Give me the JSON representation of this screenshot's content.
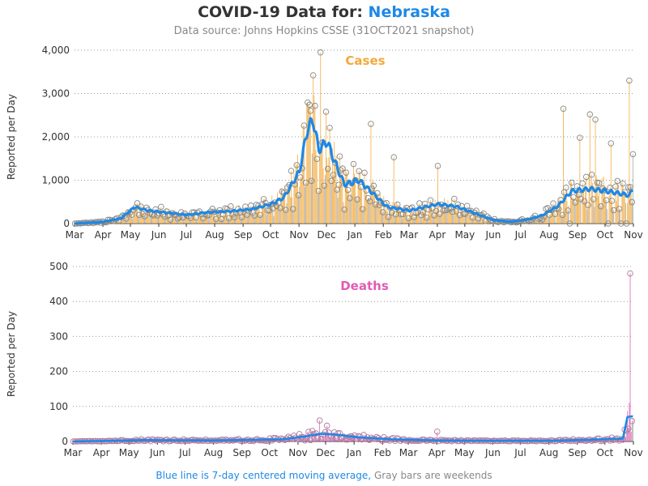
{
  "title": {
    "prefix": "COVID-19 Data for:",
    "state": "Nebraska"
  },
  "subtitle": "Data source: Johns Hopkins CSSE (31OCT2021 snapshot)",
  "footnote": {
    "blue_part": "Blue line is 7-day centered moving average,",
    "gray_part": "Gray bars are weekends"
  },
  "colors": {
    "cases": "#f2a93b",
    "deaths": "#e05cb5",
    "avg": "#1e88e5",
    "weekend": "#999999",
    "marker": "#888888"
  },
  "chart_data": [
    {
      "type": "bar",
      "panel": "Cases",
      "ylabel": "Reported per Day",
      "ylim": [
        0,
        4000
      ],
      "yticks": [
        "0",
        "1,000",
        "2,000",
        "3,000",
        "4,000"
      ],
      "xticks": [
        "Mar",
        "Apr",
        "May",
        "Jun",
        "Jul",
        "Aug",
        "Sep",
        "Oct",
        "Nov",
        "Dec",
        "Jan",
        "Feb",
        "Mar",
        "Apr",
        "May",
        "Jun",
        "Jul",
        "Aug",
        "Sep",
        "Oct",
        "Nov"
      ],
      "x_start": "2020-03-01",
      "x_end": "2021-10-31",
      "moving_average_keypoints": [
        [
          "2020-03-01",
          0
        ],
        [
          "2020-04-01",
          40
        ],
        [
          "2020-04-20",
          120
        ],
        [
          "2020-05-05",
          380
        ],
        [
          "2020-05-20",
          300
        ],
        [
          "2020-06-10",
          250
        ],
        [
          "2020-07-01",
          200
        ],
        [
          "2020-07-25",
          260
        ],
        [
          "2020-08-15",
          280
        ],
        [
          "2020-09-10",
          330
        ],
        [
          "2020-10-01",
          450
        ],
        [
          "2020-10-15",
          600
        ],
        [
          "2020-11-01",
          1200
        ],
        [
          "2020-11-10",
          2200
        ],
        [
          "2020-11-16",
          2380
        ],
        [
          "2020-11-22",
          1700
        ],
        [
          "2020-12-01",
          1900
        ],
        [
          "2020-12-10",
          1400
        ],
        [
          "2020-12-20",
          900
        ],
        [
          "2021-01-05",
          1000
        ],
        [
          "2021-01-20",
          700
        ],
        [
          "2021-02-05",
          380
        ],
        [
          "2021-03-01",
          300
        ],
        [
          "2021-04-01",
          450
        ],
        [
          "2021-04-20",
          400
        ],
        [
          "2021-05-10",
          250
        ],
        [
          "2021-06-01",
          80
        ],
        [
          "2021-06-20",
          40
        ],
        [
          "2021-07-10",
          100
        ],
        [
          "2021-07-25",
          200
        ],
        [
          "2021-08-10",
          400
        ],
        [
          "2021-08-25",
          750
        ],
        [
          "2021-09-15",
          800
        ],
        [
          "2021-10-01",
          750
        ],
        [
          "2021-10-15",
          700
        ],
        [
          "2021-10-27",
          650
        ],
        [
          "2021-10-31",
          800
        ]
      ],
      "notable_daily_values": [
        [
          "2020-11-13",
          2600
        ],
        [
          "2020-11-16",
          3420
        ],
        [
          "2020-11-24",
          3950
        ],
        [
          "2020-12-15",
          1550
        ],
        [
          "2021-01-18",
          2300
        ],
        [
          "2021-02-12",
          1530
        ],
        [
          "2021-04-01",
          1330
        ],
        [
          "2021-08-16",
          2650
        ],
        [
          "2021-09-03",
          1980
        ],
        [
          "2021-09-14",
          2520
        ],
        [
          "2021-09-20",
          2400
        ],
        [
          "2021-10-07",
          1850
        ],
        [
          "2021-10-27",
          3300
        ],
        [
          "2021-10-31",
          1600
        ]
      ]
    },
    {
      "type": "bar",
      "panel": "Deaths",
      "ylabel": "Reported per Day",
      "ylim": [
        0,
        500
      ],
      "yticks": [
        "0",
        "100",
        "200",
        "300",
        "400",
        "500"
      ],
      "xticks": [
        "Mar",
        "Apr",
        "May",
        "Jun",
        "Jul",
        "Aug",
        "Sep",
        "Oct",
        "Nov",
        "Dec",
        "Jan",
        "Feb",
        "Mar",
        "Apr",
        "May",
        "Jun",
        "Jul",
        "Aug",
        "Sep",
        "Oct",
        "Nov"
      ],
      "x_start": "2020-03-01",
      "x_end": "2021-10-31",
      "moving_average_keypoints": [
        [
          "2020-03-01",
          0
        ],
        [
          "2020-04-15",
          2
        ],
        [
          "2020-05-15",
          4
        ],
        [
          "2020-08-01",
          3
        ],
        [
          "2020-10-15",
          6
        ],
        [
          "2020-11-10",
          15
        ],
        [
          "2020-11-25",
          22
        ],
        [
          "2020-12-10",
          20
        ],
        [
          "2021-01-05",
          12
        ],
        [
          "2021-02-10",
          6
        ],
        [
          "2021-04-01",
          3
        ],
        [
          "2021-06-01",
          2
        ],
        [
          "2021-08-01",
          2
        ],
        [
          "2021-09-15",
          5
        ],
        [
          "2021-10-20",
          8
        ],
        [
          "2021-10-25",
          70
        ],
        [
          "2021-10-31",
          72
        ]
      ],
      "notable_daily_values": [
        [
          "2020-11-24",
          60
        ],
        [
          "2020-12-02",
          45
        ],
        [
          "2021-04-01",
          28
        ],
        [
          "2021-10-28",
          480
        ]
      ]
    }
  ]
}
